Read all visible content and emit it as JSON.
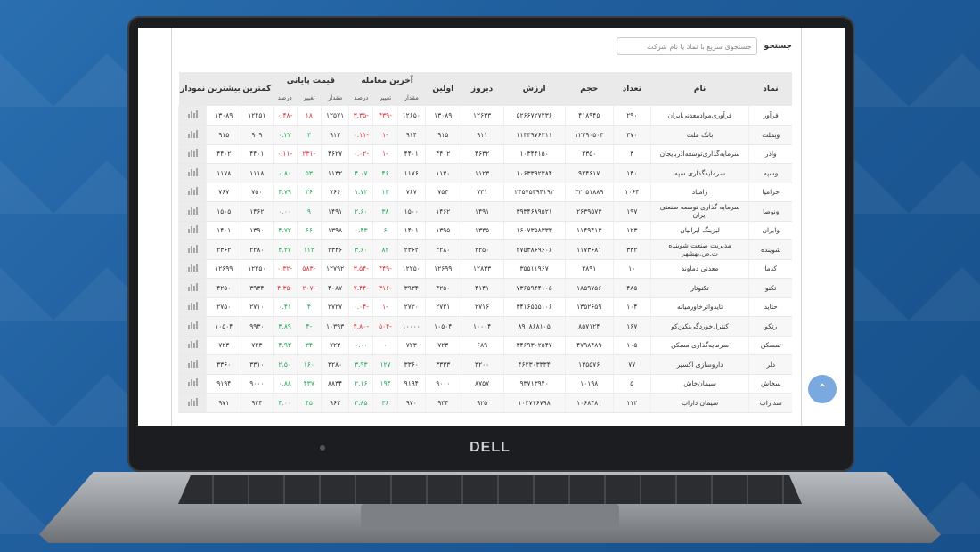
{
  "brand": "DELL",
  "search": {
    "label": "جستجو",
    "placeholder": "جستجوی سریع با نماد یا نام شرکت"
  },
  "table": {
    "headers": [
      "نماد",
      "نام",
      "تعداد",
      "حجم",
      "ارزش",
      "دیروز",
      "اولین",
      "آخرین معامله",
      "قیمت پایانی",
      "کمترین",
      "بیشترین",
      "نمودار"
    ],
    "subheaders": [
      "مقدار",
      "تغییر",
      "درصد",
      "مقدار",
      "تغییر",
      "درصد"
    ],
    "rows": [
      {
        "symbol": "فرآور",
        "name": "فرآوری‌موادمعدنی‌ایران",
        "count": "۲۹۰",
        "volume": "۴۱۸۹۴۵",
        "value": "۵۲۶۶۷۲۷۲۳۶",
        "yesterday": "۱۲۶۳۳",
        "first": "۱۳۰۸۹",
        "last_val": "۱۲۶۵۰",
        "last_chg": "-۴۳۹",
        "last_pct": "-۳.۳۵",
        "close_val": "۱۲۵۷۱",
        "close_chg": "۱۸",
        "close_pct": "-۰.۴۸",
        "low": "۱۲۴۵۱",
        "high": "۱۳۰۸۹",
        "l_neg": true,
        "c_neg": true
      },
      {
        "symbol": "وبملت",
        "name": "بانک ملت",
        "count": "۳۷۰",
        "volume": "۱۲۳۹۰۵۰۳",
        "value": "۱۱۳۳۹۷۶۳۱۱",
        "yesterday": "۹۱۱",
        "first": "۹۱۵",
        "last_val": "۹۱۴",
        "last_chg": "-۱",
        "last_pct": "-۰.۱۱",
        "close_val": "۹۱۳",
        "close_chg": "۳",
        "close_pct": "۰.۲۲",
        "low": "۹۰۹",
        "high": "۹۱۵",
        "l_neg": true,
        "c_neg": false
      },
      {
        "symbol": "وآذر",
        "name": "سرمایه‌گذاری‌توسعه‌آذربایجان",
        "count": "۳",
        "volume": "۲۳۵۰",
        "value": "۱۰۳۴۴۱۵۰",
        "yesterday": "۴۶۳۲",
        "first": "۴۴۰۲",
        "last_val": "۴۴۰۱",
        "last_chg": "-۱",
        "last_pct": "-۰.۰۲",
        "close_val": "۴۶۲۷",
        "close_chg": "-۲۳۱",
        "close_pct": "-۰.۱۱",
        "low": "۴۴۰۱",
        "high": "۴۴۰۲",
        "l_neg": true,
        "c_neg": true
      },
      {
        "symbol": "وسپه",
        "name": "سرمایه‌گذاری سپه",
        "count": "۱۴۰",
        "volume": "۹۲۴۶۱۷",
        "value": "۱۰۶۳۳۹۲۳۸۴",
        "yesterday": "۱۱۲۳",
        "first": "۱۱۳۰",
        "last_val": "۱۱۷۶",
        "last_chg": "۴۶",
        "last_pct": "۴.۰۷",
        "close_val": "۱۱۳۲",
        "close_chg": "۵۳",
        "close_pct": "۰.۸۰",
        "low": "۱۱۱۸",
        "high": "۱۱۷۸",
        "l_neg": false,
        "c_neg": false
      },
      {
        "symbol": "خزامیا",
        "name": "زامیاد",
        "count": "۱۰۶۴",
        "volume": "۳۲۰۵۱۸۸۹",
        "value": "۲۴۵۷۵۳۹۴۱۹۲",
        "yesterday": "۷۳۱",
        "first": "۷۵۴",
        "last_val": "۷۶۷",
        "last_chg": "۱۳",
        "last_pct": "۱.۷۲",
        "close_val": "۷۶۶",
        "close_chg": "۳۶",
        "close_pct": "۴.۷۹",
        "low": "۷۵۰",
        "high": "۷۶۷",
        "l_neg": false,
        "c_neg": false
      },
      {
        "symbol": "ونوصا",
        "name": "سرمایه گذاری توسعه صنعتی ایران",
        "count": "۱۹۷",
        "volume": "۲۶۳۹۵۷۳",
        "value": "۳۹۳۴۶۸۹۵۲۱",
        "yesterday": "۱۴۹۱",
        "first": "۱۴۶۲",
        "last_val": "۱۵۰۰",
        "last_chg": "۳۸",
        "last_pct": "۲.۶۰",
        "close_val": "۱۴۹۱",
        "close_chg": "۹",
        "close_pct": "۰.۰۰",
        "low": "۱۴۶۲",
        "high": "۱۵۰۵",
        "l_neg": false,
        "c_neg": false
      },
      {
        "symbol": "وایران",
        "name": "لیزینگ ایرانیان",
        "count": "۱۲۳",
        "volume": "۱۱۴۹۴۱۳",
        "value": "۱۶۰۷۳۵۸۳۳۳",
        "yesterday": "۱۳۳۵",
        "first": "۱۳۹۵",
        "last_val": "۱۴۰۱",
        "last_chg": "۶",
        "last_pct": "۰.۴۳",
        "close_val": "۱۳۹۸",
        "close_chg": "۶۶",
        "close_pct": "۴.۷۲",
        "low": "۱۳۹۰",
        "high": "۱۴۰۱",
        "l_neg": false,
        "c_neg": false
      },
      {
        "symbol": "شوینده",
        "name": "مدیریت صنعت شوینده ت.ص.بهشهر",
        "count": "۳۳۲",
        "volume": "۱۱۷۳۶۸۱",
        "value": "۲۷۵۳۸۶۹۶۰۶",
        "yesterday": "۲۲۵۰",
        "first": "۲۲۸۰",
        "last_val": "۲۳۶۲",
        "last_chg": "۸۲",
        "last_pct": "۳.۶۰",
        "close_val": "۲۳۴۶",
        "close_chg": "۱۱۲",
        "close_pct": "۴.۲۷",
        "low": "۲۲۸۰",
        "high": "۲۳۶۲",
        "l_neg": false,
        "c_neg": false
      },
      {
        "symbol": "کدما",
        "name": "معدنی دماوند",
        "count": "۱۰",
        "volume": "۲۸۹۱",
        "value": "۳۵۵۱۱۹۶۷",
        "yesterday": "۱۲۸۳۳",
        "first": "۱۲۶۹۹",
        "last_val": "۱۲۲۵۰",
        "last_chg": "-۴۴۹",
        "last_pct": "-۳.۵۴",
        "close_val": "۱۲۷۹۲",
        "close_chg": "-۵۸۳",
        "close_pct": "-۰.۳۲",
        "low": "۱۲۲۵۰",
        "high": "۱۲۶۹۹",
        "l_neg": true,
        "c_neg": true
      },
      {
        "symbol": "تکنو",
        "name": "تکنوتار",
        "count": "۴۸۵",
        "volume": "۱۸۵۹۷۵۶",
        "value": "۷۳۶۵۹۴۴۱۰۵",
        "yesterday": "۴۱۴۱",
        "first": "۴۲۵۰",
        "last_val": "۳۹۳۴",
        "last_chg": "-۳۱۶",
        "last_pct": "-۷.۴۴",
        "close_val": "۴۰۸۷",
        "close_chg": "-۲۰۷",
        "close_pct": "-۴.۳۵",
        "low": "۳۹۳۴",
        "high": "۴۲۵۰",
        "l_neg": true,
        "c_neg": true
      },
      {
        "symbol": "حتاید",
        "name": "تایدواترخاورمیانه",
        "count": "۱۰۴",
        "volume": "۱۳۵۲۶۵۹",
        "value": "۳۴۱۶۵۵۵۱۰۶",
        "yesterday": "۲۷۱۶",
        "first": "۲۷۲۱",
        "last_val": "۲۷۲۰",
        "last_chg": "-۱",
        "last_pct": "-۰.۰۴",
        "close_val": "۲۷۲۷",
        "close_chg": "۴",
        "close_pct": "۰.۴۱",
        "low": "۲۷۱۰",
        "high": "۲۷۵۰",
        "l_neg": true,
        "c_neg": false
      },
      {
        "symbol": "رتکو",
        "name": "کنترل‌خوردگی‌تکین‌کو",
        "count": "۱۶۷",
        "volume": "۸۵۷۱۲۴",
        "value": "۸۹۰۸۶۸۱۰۵",
        "yesterday": "۱۰۰۰۴",
        "first": "۱۰۵۰۴",
        "last_val": "۱۰۰۰۰",
        "last_chg": "-۵۰۴",
        "last_pct": "-۴.۸۰",
        "close_val": "۱۰۳۹۳",
        "close_chg": "-۴",
        "close_pct": "۳.۸۹",
        "low": "۹۹۳۰",
        "high": "۱۰۵۰۴",
        "l_neg": true,
        "c_neg": false
      },
      {
        "symbol": "تمسکن",
        "name": "سرمایه‌گذاری مسکن",
        "count": "۱۰۵",
        "volume": "۴۷۹۸۴۸۹",
        "value": "۳۴۶۹۳۰۲۵۴۷",
        "yesterday": "۶۸۹",
        "first": "۷۲۳",
        "last_val": "۷۲۳",
        "last_chg": "۰",
        "last_pct": "۰.۰۰",
        "close_val": "۷۲۳",
        "close_chg": "۳۴",
        "close_pct": "۴.۹۳",
        "low": "۷۲۳",
        "high": "۷۲۳",
        "l_neg": false,
        "c_neg": false
      },
      {
        "symbol": "دلر",
        "name": "داروسازی اکسیر",
        "count": "۷۷",
        "volume": "۱۳۵۵۷۶",
        "value": "۴۶۲۳۰۳۳۳۴",
        "yesterday": "۳۲۰۰",
        "first": "۳۳۳۳",
        "last_val": "۳۳۶۰",
        "last_chg": "۱۲۷",
        "last_pct": "۳.۹۳",
        "close_val": "۳۲۸۰",
        "close_chg": "۱۶۰",
        "close_pct": "۲.۵۰",
        "low": "۳۳۱۰",
        "high": "۳۳۶۰",
        "l_neg": false,
        "c_neg": false
      },
      {
        "symbol": "سخاش",
        "name": "سیمان‌خاش",
        "count": "۵",
        "volume": "۱۰۱۹۸",
        "value": "۹۳۷۱۳۹۴۰",
        "yesterday": "۸۷۵۷",
        "first": "۹۰۰۰",
        "last_val": "۹۱۹۴",
        "last_chg": "۱۹۴",
        "last_pct": "۲.۱۶",
        "close_val": "۸۸۳۴",
        "close_chg": "۴۳۷",
        "close_pct": "۰.۸۸",
        "low": "۹۰۰۰",
        "high": "۹۱۹۴",
        "l_neg": false,
        "c_neg": false
      },
      {
        "symbol": "سداراب",
        "name": "سیمان داراب",
        "count": "۱۱۲",
        "volume": "۱۰۶۸۴۸۰",
        "value": "۱۰۲۷۱۶۷۹۸",
        "yesterday": "۹۲۵",
        "first": "۹۳۴",
        "last_val": "۹۷۰",
        "last_chg": "۳۶",
        "last_pct": "۳.۸۵",
        "close_val": "۹۶۲",
        "close_chg": "۴۵",
        "close_pct": "۴.۰۰",
        "low": "۹۳۴",
        "high": "۹۷۱",
        "l_neg": false,
        "c_neg": false
      }
    ]
  }
}
